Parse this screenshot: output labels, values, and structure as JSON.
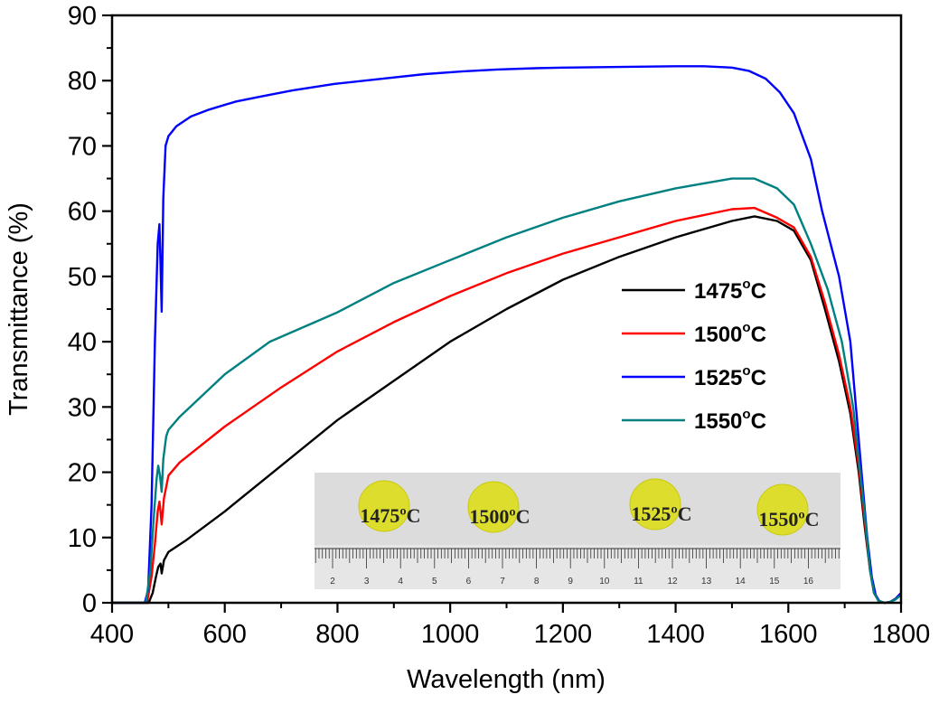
{
  "chart_data": {
    "type": "line",
    "title": "",
    "xlabel": "Wavelength (nm)",
    "ylabel": "Transmittance (%)",
    "xlim": [
      400,
      1800
    ],
    "ylim": [
      0,
      90
    ],
    "xticks": [
      400,
      600,
      800,
      1000,
      1200,
      1400,
      1600,
      1800
    ],
    "yticks": [
      0,
      10,
      20,
      30,
      40,
      50,
      60,
      70,
      80,
      90
    ],
    "xticks_minor_step": 100,
    "yticks_minor_step": 5,
    "grid": false,
    "legend_position": "center-right",
    "series": [
      {
        "name": "1475",
        "label_unit": "C",
        "color": "#000000",
        "x": [
          400,
          465,
          472,
          478,
          482,
          486,
          488,
          492,
          500,
          530,
          600,
          700,
          800,
          900,
          1000,
          1100,
          1200,
          1300,
          1400,
          1500,
          1540,
          1580,
          1610,
          1640,
          1665,
          1690,
          1710,
          1725,
          1735,
          1745,
          1752,
          1760,
          1770,
          1780,
          1790,
          1800
        ],
        "y": [
          0,
          0,
          1.5,
          4,
          5.5,
          6,
          4.5,
          6.5,
          7.8,
          9.5,
          14,
          21,
          28,
          34,
          40,
          45,
          49.5,
          53,
          56,
          58.5,
          59.2,
          58.5,
          57,
          52.5,
          45,
          37,
          29,
          20,
          12,
          5,
          1.5,
          0.3,
          0,
          0.1,
          0.6,
          1.5
        ]
      },
      {
        "name": "1500",
        "label_unit": "C",
        "color": "#ff0000",
        "x": [
          400,
          462,
          470,
          476,
          481,
          484,
          486,
          488,
          492,
          500,
          520,
          600,
          700,
          800,
          900,
          1000,
          1100,
          1200,
          1300,
          1400,
          1500,
          1540,
          1580,
          1610,
          1640,
          1665,
          1690,
          1710,
          1725,
          1735,
          1745,
          1752,
          1760,
          1770,
          1780,
          1790,
          1800
        ],
        "y": [
          0,
          0,
          4,
          9,
          14,
          15.5,
          14,
          12,
          16,
          19.5,
          21.5,
          27,
          33,
          38.5,
          43,
          47,
          50.5,
          53.5,
          56,
          58.5,
          60.3,
          60.5,
          59,
          57.5,
          53,
          46,
          38,
          30,
          21,
          13,
          5,
          1.5,
          0.3,
          0,
          0.1,
          0.6,
          1.5
        ]
      },
      {
        "name": "1525",
        "label_unit": "C",
        "color": "#0000ff",
        "x": [
          400,
          458,
          464,
          470,
          476,
          481,
          484,
          486,
          488,
          491,
          495,
          500,
          514,
          540,
          570,
          620,
          666,
          720,
          795,
          880,
          955,
          1020,
          1083,
          1150,
          1200,
          1300,
          1400,
          1450,
          1500,
          1530,
          1560,
          1585,
          1610,
          1640,
          1660,
          1690,
          1710,
          1720,
          1730,
          1740,
          1748,
          1755,
          1762,
          1770,
          1780,
          1790,
          1800
        ],
        "y": [
          0,
          0,
          2,
          15,
          40,
          55,
          58,
          52,
          44.6,
          62,
          70,
          71.5,
          73,
          74.5,
          75.5,
          76.8,
          77.6,
          78.5,
          79.5,
          80.3,
          81,
          81.4,
          81.7,
          81.9,
          82,
          82.1,
          82.2,
          82.2,
          82,
          81.5,
          80.3,
          78.2,
          75,
          68,
          60,
          50,
          40,
          30,
          20,
          10,
          4,
          1.2,
          0.2,
          0,
          0.1,
          0.6,
          1.5
        ]
      },
      {
        "name": "1550",
        "label_unit": "C",
        "color": "#008080",
        "x": [
          400,
          460,
          468,
          474,
          479,
          482,
          485,
          488,
          491,
          496,
          500,
          520,
          600,
          680,
          800,
          900,
          1000,
          1100,
          1200,
          1300,
          1400,
          1500,
          1540,
          1580,
          1610,
          1640,
          1670,
          1695,
          1715,
          1725,
          1735,
          1745,
          1752,
          1760,
          1770,
          1780,
          1790,
          1800
        ],
        "y": [
          0,
          0,
          5,
          13,
          19,
          21,
          19.5,
          17,
          22,
          25.5,
          26.5,
          28.5,
          35,
          40,
          44.5,
          49,
          52.5,
          56,
          59,
          61.5,
          63.5,
          65,
          65,
          63.5,
          61,
          55,
          48,
          40,
          30,
          22,
          14,
          5,
          1.5,
          0.3,
          0,
          0.1,
          0.5,
          1.2
        ]
      }
    ],
    "inset": {
      "description_labels": [
        "1475ºC",
        "1500ºC",
        "1525ºC",
        "1550ºC"
      ],
      "ruler_numbers": [
        "2",
        "3",
        "4",
        "5",
        "6",
        "7",
        "8",
        "9",
        "10",
        "11",
        "12",
        "13",
        "14",
        "15",
        "16"
      ]
    }
  },
  "legend": {
    "degree_symbol": "o",
    "unit": "C"
  }
}
